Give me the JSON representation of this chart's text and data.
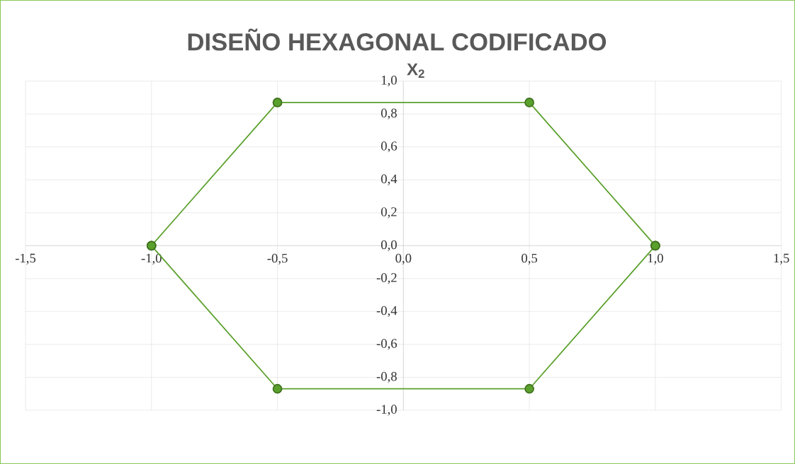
{
  "chart_data": {
    "type": "line",
    "title": "DISEÑO HEXAGONAL CODIFICADO",
    "ylabel": "X$_{2}$",
    "x": [
      -1,
      -0.5,
      0.5,
      1
    ],
    "series": [
      {
        "color": "#5aa02c",
        "values": [
          0,
          0.87,
          0.87,
          0
        ]
      },
      {
        "color": "#5aa02c",
        "values": [
          0,
          -0.87,
          -0.87,
          0
        ]
      }
    ],
    "xlim": [
      -1.5,
      1.5
    ],
    "ylim": [
      -1,
      1
    ],
    "xticks": [
      {
        "value": -1.5,
        "label": "-1,5"
      },
      {
        "value": -1,
        "label": "-1,0"
      },
      {
        "value": -0.5,
        "label": "-0,5"
      },
      {
        "value": 0,
        "label": "0,0"
      },
      {
        "value": 0.5,
        "label": "0,5"
      },
      {
        "value": 1,
        "label": "1,0"
      },
      {
        "value": 1.5,
        "label": "1,5"
      }
    ],
    "yticks": [
      {
        "value": -1,
        "label": "-1,0"
      },
      {
        "value": -0.8,
        "label": "-0,8"
      },
      {
        "value": -0.6,
        "label": "-0,6"
      },
      {
        "value": -0.4,
        "label": "-0,4"
      },
      {
        "value": -0.2,
        "label": "-0,2"
      },
      {
        "value": 0,
        "label": "0,0"
      },
      {
        "value": 0.2,
        "label": "0,2"
      },
      {
        "value": 0.4,
        "label": "0,4"
      },
      {
        "value": 0.6,
        "label": "0,6"
      },
      {
        "value": 0.8,
        "label": "0,8"
      },
      {
        "value": 1,
        "label": "1,0"
      }
    ],
    "grid": true,
    "marker": "circle",
    "line_style": "solid"
  }
}
